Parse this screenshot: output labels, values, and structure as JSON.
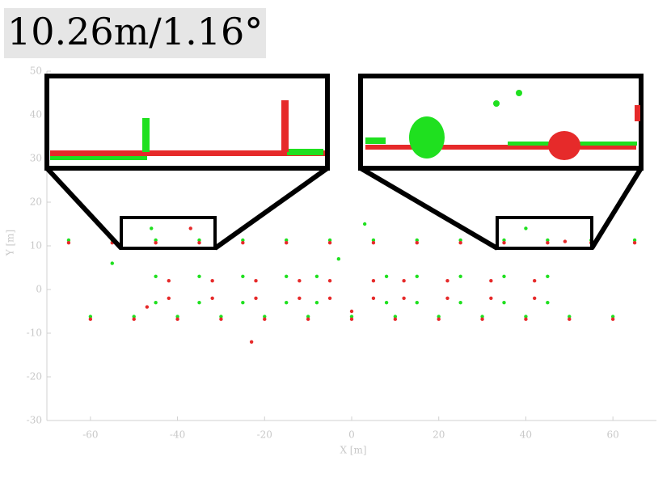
{
  "chart_data": {
    "type": "scatter",
    "title": "10.26m/1.16°",
    "xlabel": "X [m]",
    "ylabel": "Y [m]",
    "xlim": [
      -70,
      70
    ],
    "ylim": [
      -30,
      50
    ],
    "xticks": [
      -60,
      -40,
      -20,
      0,
      20,
      40,
      60
    ],
    "yticks": [
      -30,
      -20,
      -10,
      0,
      10,
      20,
      30,
      40,
      50
    ],
    "series": [
      {
        "color": "#1fe01f",
        "x": [
          -65,
          -55,
          -45,
          -35,
          -25,
          -15,
          -5,
          5,
          15,
          25,
          35,
          45,
          55,
          65,
          -60,
          -50,
          -40,
          -30,
          -20,
          -10,
          0,
          10,
          20,
          30,
          40,
          50,
          60,
          -45,
          -35,
          -25,
          -15,
          -8,
          8,
          15,
          25,
          35,
          45,
          -45,
          -35,
          -25,
          -15,
          -8,
          8,
          15,
          25,
          35,
          45,
          -46,
          3,
          40,
          -55,
          -3
        ],
        "values": [
          11.3,
          11.3,
          11.3,
          11.3,
          11.3,
          11.3,
          11.3,
          11.3,
          11.3,
          11.3,
          11.3,
          11.3,
          11.3,
          11.3,
          -6.2,
          -6.2,
          -6.2,
          -6.2,
          -6.2,
          -6.2,
          -6.2,
          -6.2,
          -6.2,
          -6.2,
          -6.2,
          -6.2,
          -6.2,
          3,
          3,
          3,
          3,
          3,
          3,
          3,
          3,
          3,
          3,
          -3,
          -3,
          -3,
          -3,
          -3,
          -3,
          -3,
          -3,
          -3,
          -3,
          14,
          15,
          14,
          6,
          7
        ]
      },
      {
        "color": "#e62a2a",
        "x": [
          -65,
          -55,
          -45,
          -35,
          -25,
          -15,
          -5,
          5,
          15,
          25,
          35,
          45,
          55,
          65,
          -60,
          -50,
          -40,
          -30,
          -20,
          -10,
          0,
          10,
          20,
          30,
          40,
          50,
          60,
          -42,
          -32,
          -22,
          -12,
          -5,
          5,
          12,
          22,
          32,
          42,
          -42,
          -32,
          -22,
          -12,
          -5,
          5,
          12,
          22,
          32,
          42,
          -37,
          49,
          -47,
          0,
          -23
        ],
        "values": [
          10.7,
          10.7,
          10.7,
          10.7,
          10.7,
          10.7,
          10.7,
          10.7,
          10.7,
          10.7,
          10.7,
          10.7,
          10.7,
          10.7,
          -6.8,
          -6.8,
          -6.8,
          -6.8,
          -6.8,
          -6.8,
          -6.8,
          -6.8,
          -6.8,
          -6.8,
          -6.8,
          -6.8,
          -6.8,
          2,
          2,
          2,
          2,
          2,
          2,
          2,
          2,
          2,
          2,
          -2,
          -2,
          -2,
          -2,
          -2,
          -2,
          -2,
          -2,
          -2,
          -2,
          14,
          11,
          -4,
          -5,
          -12
        ]
      }
    ]
  }
}
